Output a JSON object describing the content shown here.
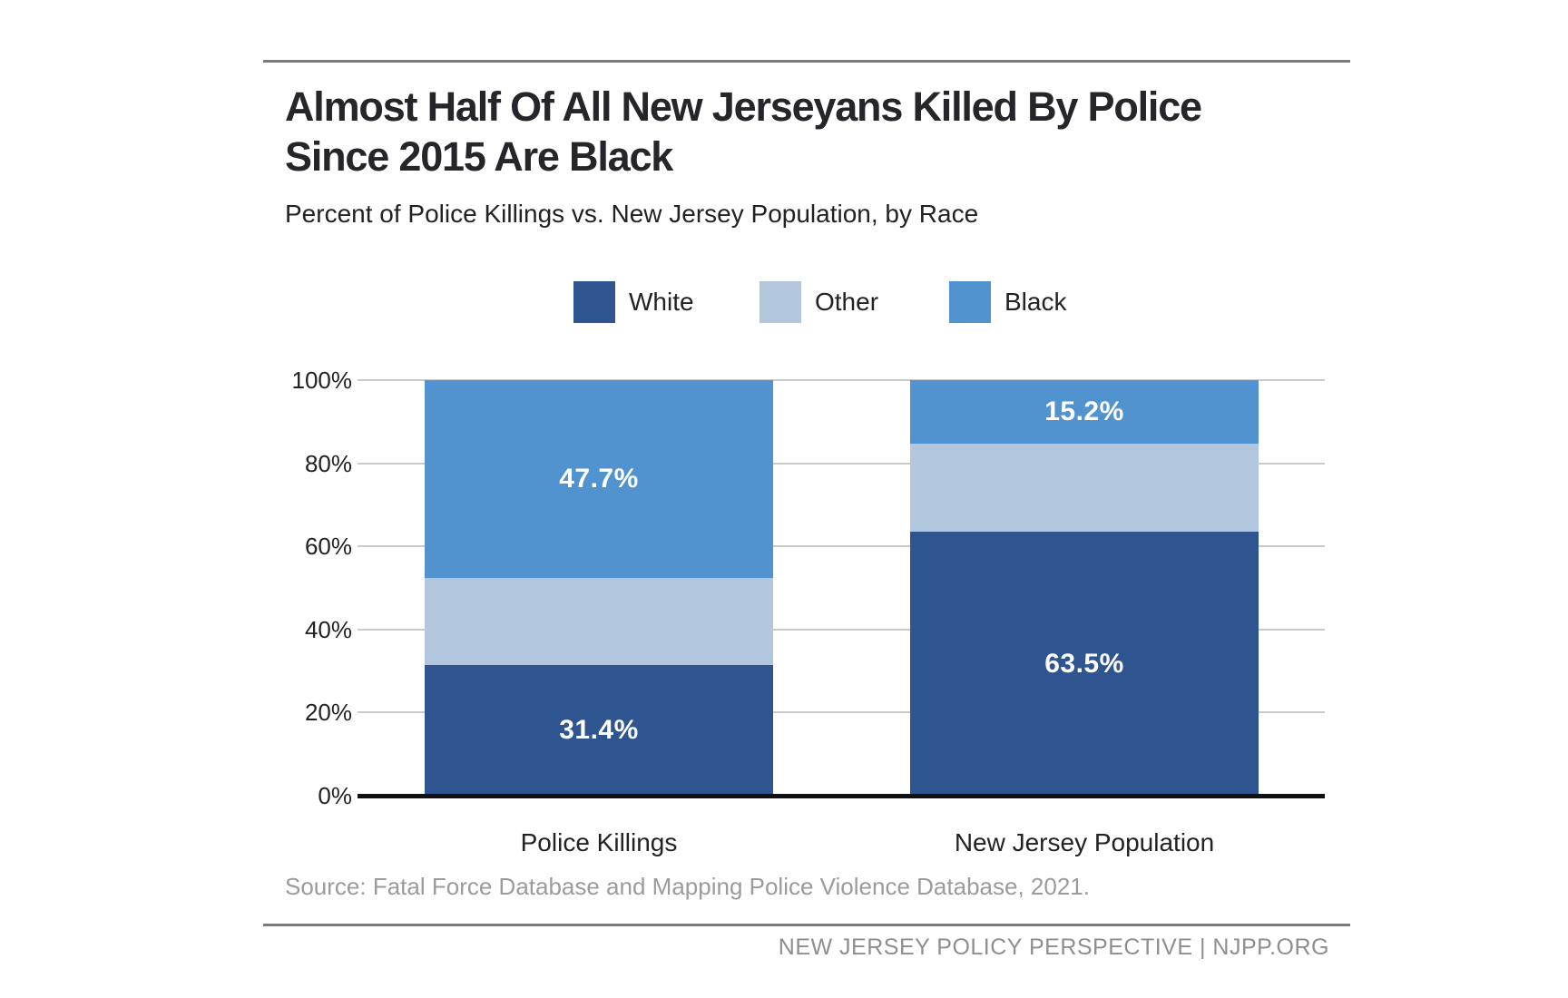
{
  "header": {
    "title_lines": [
      "Almost Half Of All New Jerseyans Killed By Police",
      "Since 2015 Are Black"
    ],
    "subtitle": "Percent of Police Killings vs. New Jersey Population, by Race"
  },
  "footer": {
    "source": "Source: Fatal Force Database and Mapping Police Violence Database, 2021.",
    "branding": "NEW JERSEY POLICY PERSPECTIVE | NJPP.ORG"
  },
  "colors": {
    "background": "#FFFFFF",
    "series_white": "#2E5590",
    "series_other": "#B2C7DD",
    "series_black": "#5093CE",
    "gridline": "#C9C9C9",
    "axis_baseline": "#111111",
    "rule": "#7A7A7A",
    "title_text": "#26262A",
    "body_text": "#222222",
    "source_text": "#9B9B9B",
    "branding_text": "#8E8E8E",
    "value_label_text": "#FFFFFF"
  },
  "chart_data": {
    "type": "bar",
    "stacked": true,
    "title": "Almost Half Of All New Jerseyans Killed By Police Since 2015 Are Black",
    "subtitle": "Percent of Police Killings vs. New Jersey Population, by Race",
    "categories": [
      "Police Killings",
      "New Jersey Population"
    ],
    "series": [
      {
        "name": "White",
        "color": "#2E5590",
        "values": [
          31.4,
          63.5
        ],
        "data_labels": [
          "31.4%",
          "63.5%"
        ]
      },
      {
        "name": "Other",
        "color": "#B2C7DD",
        "values": [
          20.9,
          21.3
        ],
        "data_labels": [
          "",
          ""
        ]
      },
      {
        "name": "Black",
        "color": "#5093CE",
        "values": [
          47.7,
          15.2
        ],
        "data_labels": [
          "47.7%",
          "15.2%"
        ]
      }
    ],
    "y_axis": {
      "min": 0,
      "max": 100,
      "tick_interval": 20,
      "tick_labels": [
        "0%",
        "20%",
        "40%",
        "60%",
        "80%",
        "100%"
      ],
      "grid": true
    },
    "legend": {
      "position": "top",
      "entries": [
        "White",
        "Other",
        "Black"
      ]
    },
    "source": "Source: Fatal Force Database and Mapping Police Violence Database, 2021."
  }
}
